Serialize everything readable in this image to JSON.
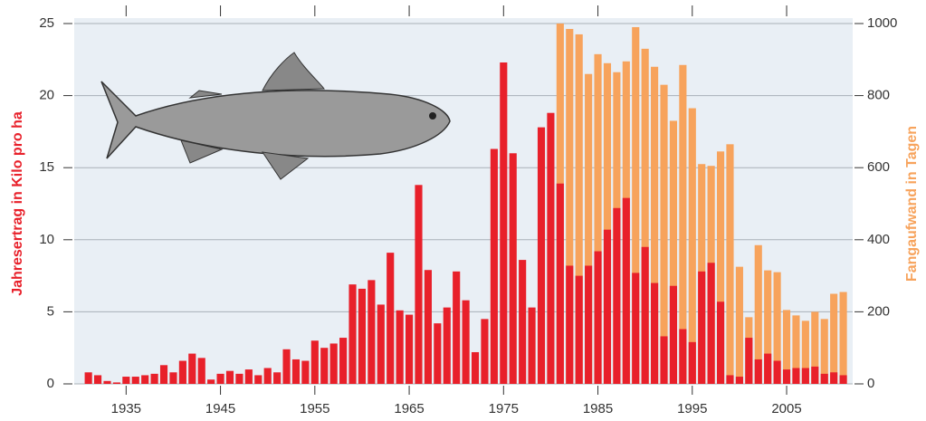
{
  "chart_data": {
    "type": "bar",
    "x": [
      1931,
      1932,
      1933,
      1934,
      1935,
      1936,
      1937,
      1938,
      1939,
      1940,
      1941,
      1942,
      1943,
      1944,
      1945,
      1946,
      1947,
      1948,
      1949,
      1950,
      1951,
      1952,
      1953,
      1954,
      1955,
      1956,
      1957,
      1958,
      1959,
      1960,
      1961,
      1962,
      1963,
      1964,
      1965,
      1966,
      1967,
      1968,
      1969,
      1970,
      1971,
      1972,
      1973,
      1974,
      1975,
      1976,
      1977,
      1978,
      1979,
      1980,
      1981,
      1982,
      1983,
      1984,
      1985,
      1986,
      1987,
      1988,
      1989,
      1990,
      1991,
      1992,
      1993,
      1994,
      1995,
      1996,
      1997,
      1998,
      1999,
      2000,
      2001,
      2002,
      2003,
      2004,
      2005,
      2006,
      2007,
      2008,
      2009,
      2010,
      2011
    ],
    "series": [
      {
        "color": "#e8202a",
        "values": [
          0.8,
          0.6,
          0.2,
          0.1,
          0.5,
          0.5,
          0.6,
          0.7,
          1.3,
          0.8,
          1.6,
          2.1,
          1.8,
          0.3,
          0.7,
          0.9,
          0.7,
          1.0,
          0.6,
          1.1,
          0.8,
          2.4,
          1.7,
          1.6,
          3.0,
          2.5,
          2.8,
          3.2,
          6.9,
          6.6,
          7.2,
          5.5,
          9.1,
          5.1,
          4.8,
          13.8,
          7.9,
          4.2,
          5.3,
          7.8,
          5.8,
          2.2,
          4.5,
          16.3,
          22.3,
          16.0,
          8.6,
          5.3,
          17.8,
          18.8,
          13.9,
          8.2,
          7.5,
          8.2,
          9.2,
          10.7,
          12.2,
          12.9,
          7.7,
          9.5,
          7.0,
          3.3,
          6.8,
          3.8,
          2.9,
          7.8,
          8.4,
          5.7,
          0.6,
          0.5,
          3.2,
          1.7,
          2.1,
          1.6,
          1.0,
          1.1,
          1.1,
          1.2,
          0.7,
          0.8,
          0.6
        ]
      },
      {
        "color": "#f7a35c",
        "axis": "y2",
        "values": [
          null,
          null,
          null,
          null,
          null,
          null,
          null,
          null,
          null,
          null,
          null,
          null,
          null,
          null,
          null,
          null,
          null,
          null,
          null,
          null,
          null,
          null,
          null,
          null,
          null,
          null,
          null,
          null,
          null,
          null,
          null,
          null,
          null,
          null,
          null,
          null,
          null,
          null,
          null,
          null,
          null,
          null,
          null,
          null,
          null,
          null,
          null,
          null,
          null,
          null,
          1000,
          985,
          970,
          860,
          915,
          890,
          865,
          895,
          990,
          930,
          880,
          830,
          730,
          885,
          765,
          610,
          605,
          645,
          665,
          325,
          185,
          385,
          315,
          310,
          205,
          190,
          175,
          200,
          180,
          250,
          255
        ]
      }
    ],
    "xlim": [
      1929.5,
      2012
    ],
    "xticks": [
      1935,
      1945,
      1955,
      1965,
      1975,
      1985,
      1995,
      2005
    ],
    "ylim": [
      0,
      25
    ],
    "yticks": [
      0,
      5,
      10,
      15,
      20,
      25
    ],
    "y2lim": [
      0,
      1000
    ],
    "y2ticks": [
      0,
      200,
      400,
      600,
      800,
      1000
    ],
    "ylabel": "Jahresertrag in Kilo pro ha",
    "y2label": "Fangaufwand in Tagen",
    "grid": true
  }
}
